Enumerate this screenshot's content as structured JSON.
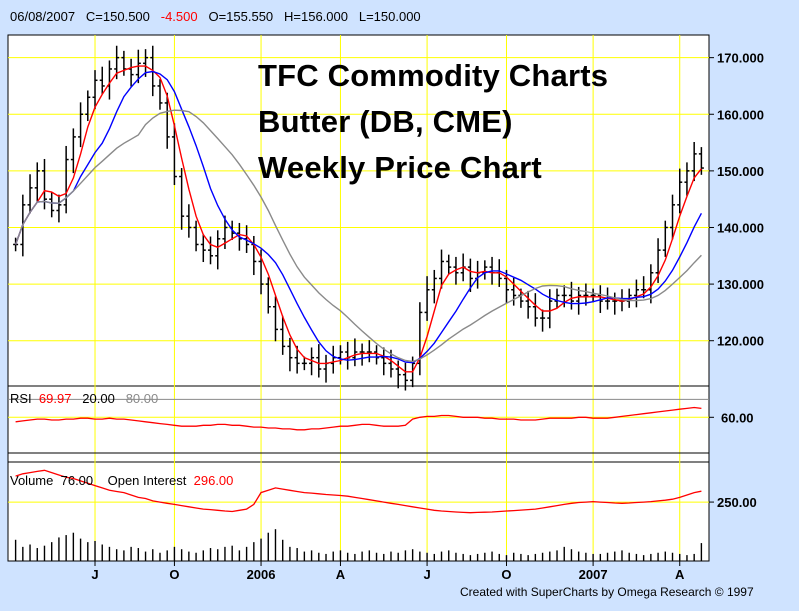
{
  "header": {
    "date": "06/08/2007",
    "close_label": "C=150.500",
    "change": "-4.500",
    "open_label": "O=155.550",
    "high_label": "H=156.000",
    "low_label": "L=150.000"
  },
  "title_lines": [
    "TFC Commodity Charts",
    "Butter (DB, CME)",
    "Weekly Price Chart"
  ],
  "rsi_panel": {
    "label": "RSI",
    "value": "69.97",
    "level_low": "20.00",
    "level_high": "80.00",
    "axis_tick": "60.00"
  },
  "volume_panel": {
    "label": "Volume",
    "value": "76.00",
    "oi_label": "Open Interest",
    "oi_value": "296.00",
    "axis_tick": "250.00"
  },
  "footer": {
    "credit": "Created with SuperCharts by Omega Research © 1997"
  },
  "colors": {
    "background": "#cfe3ff",
    "panel": "#ffffff",
    "grid": "#ffff00",
    "price_bars": "#000000",
    "ma_fast": "#ff0000",
    "ma_mid": "#0000ff",
    "ma_slow": "#8a8a8a",
    "rsi": "#ff0000",
    "open_interest": "#ff0000"
  },
  "chart_data": [
    {
      "type": "line",
      "chart": "weekly OHLC price bars with moving averages",
      "price_ticks": [
        "170.000",
        "160.000",
        "150.000",
        "140.000",
        "130.000",
        "120.000"
      ],
      "ylim": [
        112,
        174
      ],
      "x_ticks": [
        "J",
        "O",
        "2006",
        "A",
        "J",
        "O",
        "2007",
        "A"
      ],
      "grid": true,
      "closes": [
        137,
        144,
        147,
        150,
        145,
        143,
        144,
        152,
        156,
        160,
        163,
        166,
        165,
        168,
        170,
        168,
        167,
        169,
        170,
        165,
        162,
        156,
        149,
        142,
        140,
        137,
        136,
        135,
        138,
        140,
        139,
        138,
        137,
        134,
        130,
        126,
        122,
        119,
        117,
        116,
        116,
        117,
        115,
        116,
        117,
        118,
        117,
        118,
        118,
        118,
        117,
        116,
        115,
        114,
        113,
        116,
        125,
        129,
        131,
        134,
        133,
        132,
        133,
        131,
        132,
        133,
        132,
        131,
        129,
        128,
        127,
        126,
        124,
        124,
        127,
        128,
        128,
        127,
        128,
        128,
        128,
        127,
        127,
        127,
        127,
        128,
        129,
        129,
        132,
        136,
        140,
        144,
        148,
        150,
        153,
        150.5
      ],
      "series": [
        {
          "name": "",
          "color": "red",
          "period": 4
        },
        {
          "name": "",
          "color": "blue",
          "period": 9
        },
        {
          "name": "",
          "color": "gray",
          "period": 18
        }
      ]
    },
    {
      "type": "line",
      "chart": "RSI",
      "ticks": [
        "60.00"
      ],
      "levels": [
        80,
        20
      ],
      "ylim": [
        10,
        95
      ],
      "series": [
        {
          "name": "RSI",
          "values": [
            55,
            56,
            57,
            58,
            58,
            57,
            57,
            58,
            58,
            59,
            59,
            58,
            58,
            59,
            58,
            58,
            57,
            56,
            55,
            54,
            53,
            52,
            51,
            50,
            50,
            50,
            51,
            51,
            52,
            52,
            51,
            51,
            50,
            49,
            49,
            48,
            48,
            47,
            47,
            46,
            46,
            47,
            47,
            48,
            49,
            50,
            50,
            51,
            52,
            52,
            51,
            50,
            50,
            50,
            51,
            58,
            60,
            61,
            61,
            62,
            62,
            61,
            60,
            60,
            60,
            59,
            59,
            58,
            58,
            58,
            57,
            57,
            57,
            58,
            59,
            59,
            59,
            59,
            60,
            60,
            59,
            59,
            59,
            60,
            61,
            62,
            63,
            64,
            65,
            66,
            67,
            68,
            69,
            70,
            71,
            69.97
          ]
        }
      ]
    },
    {
      "type": "bar",
      "chart": "Volume and Open Interest",
      "ticks": [
        "250.00"
      ],
      "ylim": [
        0,
        420
      ],
      "series": [
        {
          "name": "Volume",
          "values": [
            90,
            60,
            70,
            55,
            65,
            80,
            100,
            110,
            120,
            95,
            80,
            85,
            70,
            60,
            50,
            45,
            60,
            55,
            40,
            50,
            35,
            45,
            60,
            50,
            40,
            35,
            45,
            55,
            50,
            60,
            65,
            45,
            60,
            80,
            95,
            120,
            135,
            90,
            60,
            55,
            40,
            45,
            35,
            30,
            40,
            45,
            35,
            30,
            40,
            45,
            35,
            30,
            40,
            35,
            45,
            50,
            40,
            35,
            30,
            40,
            45,
            35,
            30,
            25,
            30,
            35,
            40,
            30,
            25,
            35,
            30,
            25,
            30,
            35,
            40,
            45,
            60,
            50,
            40,
            35,
            30,
            30,
            35,
            40,
            45,
            35,
            30,
            25,
            30,
            35,
            40,
            35,
            30,
            25,
            30,
            76
          ]
        },
        {
          "name": "Open Interest",
          "values": [
            360,
            370,
            375,
            380,
            385,
            375,
            365,
            355,
            350,
            340,
            330,
            320,
            310,
            300,
            295,
            290,
            280,
            270,
            265,
            255,
            250,
            245,
            240,
            235,
            230,
            225,
            220,
            218,
            215,
            212,
            210,
            215,
            220,
            240,
            290,
            300,
            310,
            305,
            300,
            295,
            290,
            288,
            285,
            282,
            280,
            278,
            275,
            270,
            265,
            260,
            255,
            250,
            245,
            240,
            235,
            230,
            225,
            220,
            215,
            212,
            210,
            208,
            206,
            205,
            206,
            207,
            208,
            210,
            212,
            214,
            216,
            218,
            220,
            225,
            230,
            235,
            240,
            245,
            248,
            250,
            252,
            250,
            248,
            246,
            245,
            246,
            248,
            250,
            252,
            255,
            258,
            262,
            270,
            280,
            290,
            296
          ]
        }
      ]
    }
  ]
}
